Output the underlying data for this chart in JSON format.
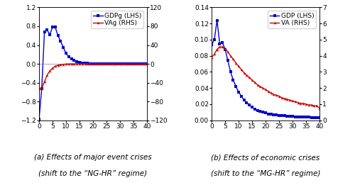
{
  "panel_a": {
    "title_line1": "(a) Effects of major event crises",
    "title_line2": "(shift to the “NG-HR” regime)",
    "legend_blue": "GDPg (LHS)",
    "legend_red": "VAg (RHS)",
    "xlim": [
      0,
      40
    ],
    "ylim_left": [
      -1.2,
      1.2
    ],
    "ylim_right": [
      -120,
      120
    ],
    "xticks": [
      0,
      5,
      10,
      15,
      20,
      25,
      30,
      35,
      40
    ],
    "yticks_left": [
      -1.2,
      -0.8,
      -0.4,
      0.0,
      0.4,
      0.8,
      1.2
    ],
    "yticks_right": [
      -120,
      -80,
      -40,
      0,
      40,
      80,
      120
    ],
    "blue_y": [
      -1.18,
      -0.52,
      0.68,
      0.72,
      0.62,
      0.78,
      0.78,
      0.6,
      0.48,
      0.35,
      0.22,
      0.15,
      0.1,
      0.07,
      0.04,
      0.03,
      0.02,
      0.01,
      0.01,
      0.005,
      0.003,
      0.002,
      0.001,
      0.001,
      0.0005,
      0.0003,
      0.0002,
      0.0001,
      0.0001,
      0.0,
      0.0,
      0.0,
      0.0,
      0.0,
      0.0,
      0.0,
      0.0,
      0.0,
      0.0,
      0.0,
      0.0
    ],
    "red_y": [
      -52,
      -52,
      -38,
      -24,
      -15,
      -9,
      -5,
      -3,
      -2,
      -1,
      -0.5,
      -0.3,
      -0.2,
      -0.1,
      -0.05,
      -0.03,
      -0.01,
      -0.005,
      -0.003,
      -0.001,
      0.0,
      0.0,
      0.0,
      0.0,
      0.0,
      0.0,
      0.0,
      0.0,
      0.0,
      0.0,
      0.0,
      0.0,
      0.0,
      0.0,
      0.0,
      0.0,
      0.0,
      0.0,
      0.0,
      0.0,
      0.0
    ]
  },
  "panel_b": {
    "title_line1": "(b) Effects of economic crises",
    "title_line2": "(shift to the “MG-HR” regime)",
    "legend_blue": "GDP (LHS)",
    "legend_red": "VA (RHS)",
    "xlim": [
      0,
      40
    ],
    "ylim_left": [
      0.0,
      0.14
    ],
    "ylim_right": [
      0,
      7
    ],
    "xticks": [
      0,
      5,
      10,
      15,
      20,
      25,
      30,
      35,
      40
    ],
    "yticks_left": [
      0.0,
      0.02,
      0.04,
      0.06,
      0.08,
      0.1,
      0.12,
      0.14
    ],
    "yticks_right": [
      0,
      1,
      2,
      3,
      4,
      5,
      6,
      7
    ],
    "blue_y": [
      0.094,
      0.1,
      0.124,
      0.095,
      0.096,
      0.088,
      0.074,
      0.06,
      0.05,
      0.042,
      0.035,
      0.03,
      0.025,
      0.022,
      0.019,
      0.016,
      0.014,
      0.012,
      0.011,
      0.01,
      0.009,
      0.008,
      0.0075,
      0.007,
      0.0065,
      0.006,
      0.0058,
      0.0055,
      0.0052,
      0.005,
      0.0048,
      0.0045,
      0.0043,
      0.0042,
      0.004,
      0.0038,
      0.0037,
      0.0036,
      0.0035,
      0.0034,
      0.0033
    ],
    "red_y": [
      3.9,
      4.1,
      4.4,
      4.55,
      4.55,
      4.45,
      4.25,
      4.0,
      3.8,
      3.55,
      3.35,
      3.15,
      2.95,
      2.8,
      2.65,
      2.5,
      2.35,
      2.2,
      2.1,
      2.0,
      1.9,
      1.8,
      1.7,
      1.6,
      1.55,
      1.5,
      1.4,
      1.35,
      1.3,
      1.25,
      1.2,
      1.15,
      1.1,
      1.05,
      1.05,
      1.0,
      0.95,
      0.95,
      0.9,
      0.9,
      0.75
    ]
  },
  "blue_color": "#0000CC",
  "red_color": "#CC0000",
  "marker_size": 2.5,
  "line_width": 1.0,
  "font_size_title": 7.5,
  "font_size_tick": 6.5,
  "font_size_legend": 6.5
}
